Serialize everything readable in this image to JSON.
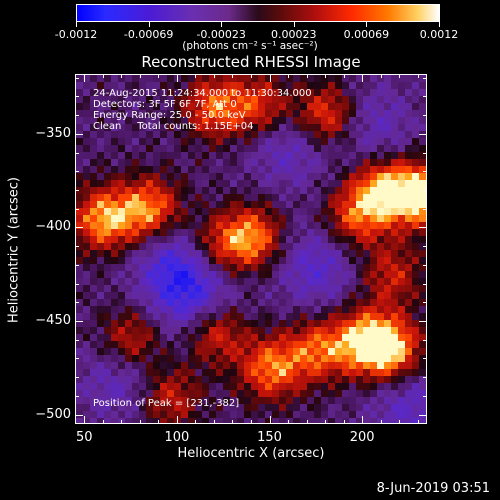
{
  "colorbar": {
    "tick_labels": [
      "-0.0012",
      "-0.00069",
      "-0.00023",
      "0.00023",
      "0.00069",
      "0.0012"
    ],
    "units": "(photons cm⁻² s⁻¹ asec⁻²)"
  },
  "chart_data": {
    "type": "heatmap",
    "title": "Reconstructed RHESSI Image",
    "xlabel": "Heliocentric X (arcsec)",
    "ylabel": "Heliocentric Y (arcsec)",
    "xlim": [
      45,
      235
    ],
    "ylim": [
      -505,
      -318
    ],
    "x_ticks": [
      "50",
      "100",
      "150",
      "200"
    ],
    "y_ticks": [
      "-350",
      "-400",
      "-450",
      "-500"
    ],
    "color_range": [
      -0.0012,
      0.0012
    ],
    "colormap": "blue-purple-black-red-yellow-white",
    "peak_position": [
      231,
      -382
    ],
    "bright_regions": [
      {
        "x": 60,
        "y": -395,
        "level": 0.85
      },
      {
        "x": 85,
        "y": -390,
        "level": 0.8
      },
      {
        "x": 75,
        "y": -460,
        "level": 0.6
      },
      {
        "x": 120,
        "y": -335,
        "level": 0.7
      },
      {
        "x": 180,
        "y": -340,
        "level": 0.75
      },
      {
        "x": 145,
        "y": -335,
        "level": 0.6
      },
      {
        "x": 140,
        "y": -405,
        "level": 0.8
      },
      {
        "x": 120,
        "y": -410,
        "level": 0.55
      },
      {
        "x": 120,
        "y": -455,
        "level": 0.7
      },
      {
        "x": 150,
        "y": -475,
        "level": 0.75
      },
      {
        "x": 175,
        "y": -465,
        "level": 0.65
      },
      {
        "x": 200,
        "y": -460,
        "level": 0.8
      },
      {
        "x": 215,
        "y": -465,
        "level": 0.9
      },
      {
        "x": 210,
        "y": -380,
        "level": 0.85
      },
      {
        "x": 231,
        "y": -382,
        "level": 1.0
      },
      {
        "x": 195,
        "y": -395,
        "level": 0.6
      },
      {
        "x": 95,
        "y": -490,
        "level": 0.55
      },
      {
        "x": 215,
        "y": -425,
        "level": 0.5
      }
    ],
    "dark_regions": [
      {
        "x": 100,
        "y": -420,
        "level": -0.6
      },
      {
        "x": 110,
        "y": -440,
        "level": -0.5
      },
      {
        "x": 175,
        "y": -420,
        "level": -0.45
      },
      {
        "x": 160,
        "y": -355,
        "level": -0.4
      },
      {
        "x": 70,
        "y": -480,
        "level": -0.4
      },
      {
        "x": 225,
        "y": -495,
        "level": -0.4
      },
      {
        "x": 205,
        "y": -345,
        "level": -0.35
      }
    ]
  },
  "info": {
    "line1": "24-Aug-2015 11:24:34.000 to 11:30:34.000",
    "line2": "Detectors: 3F 5F 6F 7F, Att 0",
    "line3": "Energy Range: 25.0 - 50.0 keV",
    "line4": "Clean     Total counts: 1.15E+04",
    "peak": "Position of Peak = [231,-382]"
  },
  "timestamp": "8-Jun-2019 03:51"
}
